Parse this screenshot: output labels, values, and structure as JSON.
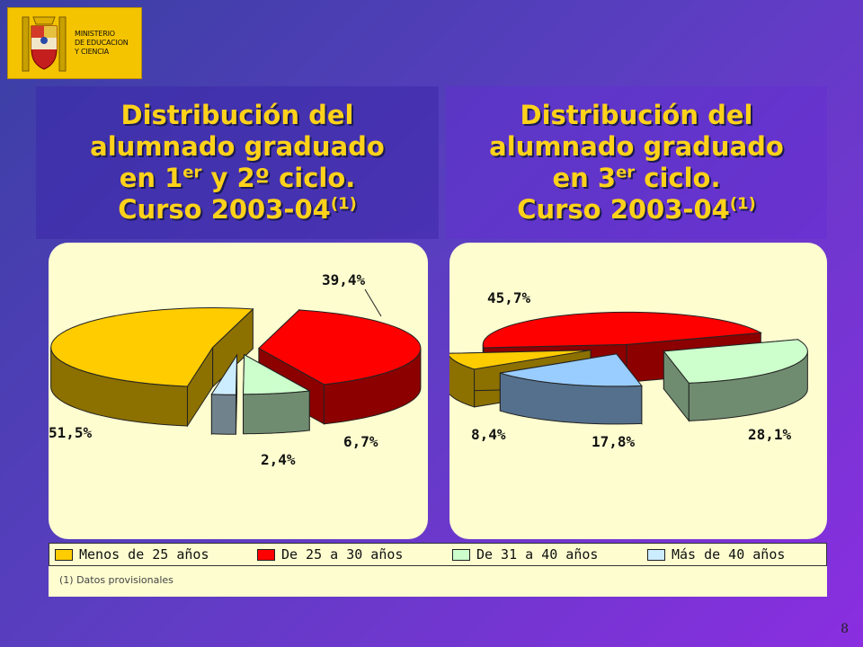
{
  "logo": {
    "lines": [
      "MINISTERIO",
      "DE EDUCACION",
      "Y CIENCIA"
    ],
    "icon": "coat-of-arms"
  },
  "titles": {
    "left": {
      "line1": "Distribución del",
      "line2": "alumnado graduado",
      "line3_pre": "en 1",
      "line3_sup": "er",
      "line3_post": " y 2º ciclo.",
      "line4": "Curso 2003-04",
      "line4_sup": "(1)"
    },
    "right": {
      "line1": "Distribución del",
      "line2": "alumnado graduado",
      "line3_pre": "en 3",
      "line3_sup": "er",
      "line3_post": " ciclo.",
      "line4": "Curso 2003-04",
      "line4_sup": "(1)"
    }
  },
  "chart_data": [
    {
      "type": "pie",
      "title": "Distribución del alumnado graduado en 1er y 2º ciclo. Curso 2003-04(1)",
      "categories": [
        "Menos de 25 años",
        "De 25 a 30 años",
        "De 31 a 40 años",
        "Más de 40 años"
      ],
      "values": [
        51.5,
        39.4,
        6.7,
        2.4
      ],
      "labels": [
        "51,5%",
        "39,4%",
        "6,7%",
        "2,4%"
      ],
      "colors": [
        "#ffcc00",
        "#ff0000",
        "#ccffcc",
        "#ccecff"
      ]
    },
    {
      "type": "pie",
      "title": "Distribución del alumnado graduado en 3er ciclo. Curso 2003-04(1)",
      "categories": [
        "Menos de 25 años",
        "De 25 a 30 años",
        "De 31 a 40 años",
        "Más de 40 años"
      ],
      "values": [
        8.4,
        45.7,
        28.1,
        17.8
      ],
      "labels": [
        "8,4%",
        "45,7%",
        "28,1%",
        "17,8%"
      ],
      "colors": [
        "#ffcc00",
        "#ff0000",
        "#ccffcc",
        "#99ccff"
      ]
    }
  ],
  "legend": {
    "items": [
      {
        "label": "Menos de 25 años",
        "color": "#ffcc00"
      },
      {
        "label": "De 25 a 30 años",
        "color": "#ff0000"
      },
      {
        "label": "De 31 a 40 años",
        "color": "#ccffcc"
      },
      {
        "label": "Más de 40 años",
        "color": "#ccecff"
      }
    ]
  },
  "footnote": "(1) Datos provisionales",
  "page_number": "8"
}
